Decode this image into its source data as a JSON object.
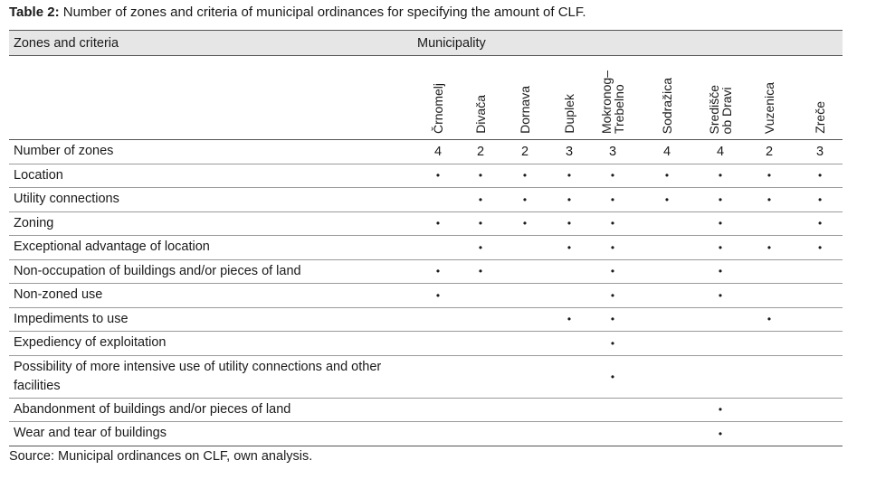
{
  "caption": {
    "label": "Table 2:",
    "text": "Number of zones and criteria of municipal ordinances for specifying the amount of CLF."
  },
  "header": {
    "criteria_label": "Zones and criteria",
    "municipality_label": "Municipality"
  },
  "municipalities": [
    "Črnomelj",
    "Divača",
    "Dornava",
    "Duplek",
    "Mokronog–\nTrebelno",
    "Sodražica",
    "Središče\nob Dravi",
    "Vuzenica",
    "Zreče"
  ],
  "rows": [
    {
      "label": "Number of zones",
      "values": [
        "4",
        "2",
        "2",
        "3",
        "3",
        "4",
        "4",
        "2",
        "3"
      ]
    },
    {
      "label": "Location",
      "values": [
        "•",
        "•",
        "•",
        "•",
        "•",
        "•",
        "•",
        "•",
        "•"
      ]
    },
    {
      "label": "Utility connections",
      "values": [
        "",
        "•",
        "•",
        "•",
        "•",
        "•",
        "•",
        "•",
        "•"
      ]
    },
    {
      "label": "Zoning",
      "values": [
        "•",
        "•",
        "•",
        "•",
        "•",
        "",
        "•",
        "",
        "•"
      ]
    },
    {
      "label": "Exceptional advantage of location",
      "values": [
        "",
        "•",
        "",
        "•",
        "•",
        "",
        "•",
        "•",
        "•"
      ]
    },
    {
      "label": "Non-occupation of buildings and/or pieces of land",
      "values": [
        "•",
        "•",
        "",
        "",
        "•",
        "",
        "•",
        "",
        ""
      ]
    },
    {
      "label": "Non-zoned use",
      "values": [
        "•",
        "",
        "",
        "",
        "•",
        "",
        "•",
        "",
        ""
      ]
    },
    {
      "label": "Impediments to use",
      "values": [
        "",
        "",
        "",
        "•",
        "•",
        "",
        "",
        "•",
        ""
      ]
    },
    {
      "label": "Expediency of exploitation",
      "values": [
        "",
        "",
        "",
        "",
        "•",
        "",
        "",
        "",
        ""
      ]
    },
    {
      "label": "Possibility of more intensive use of utility connections and other facilities",
      "values": [
        "",
        "",
        "",
        "",
        "•",
        "",
        "",
        "",
        ""
      ]
    },
    {
      "label": "Abandonment of buildings and/or pieces of land",
      "values": [
        "",
        "",
        "",
        "",
        "",
        "",
        "•",
        "",
        ""
      ]
    },
    {
      "label": "Wear and tear of buildings",
      "values": [
        "",
        "",
        "",
        "",
        "",
        "",
        "•",
        "",
        ""
      ]
    }
  ],
  "source": "Source: Municipal ordinances on CLF, own analysis."
}
